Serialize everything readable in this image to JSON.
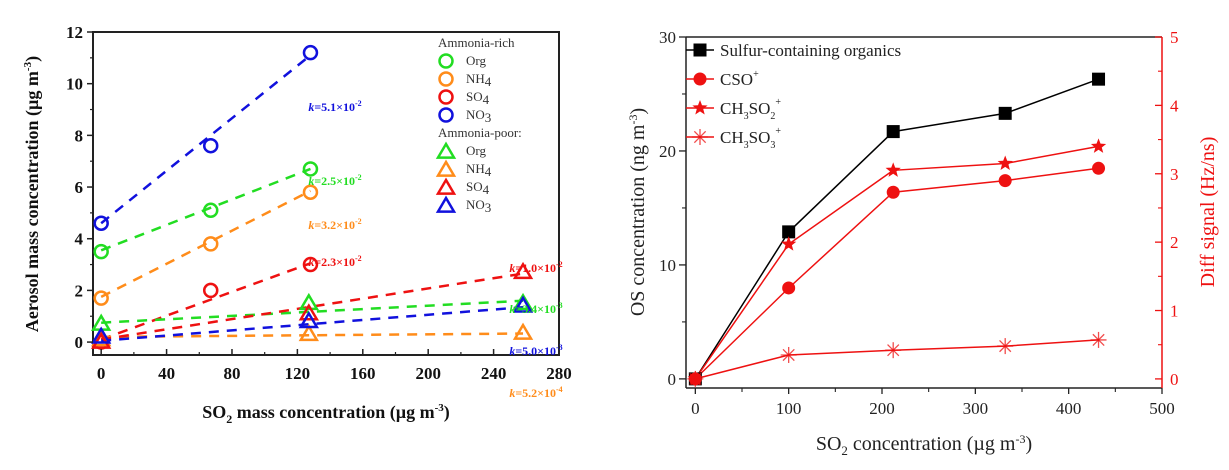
{
  "chart_data": [
    {
      "type": "scatter",
      "panel": "left",
      "title": "",
      "xlabel": "SO2 mass concentration (µg m-3)",
      "xlabel_parts": {
        "main": "SO",
        "sub": "2",
        "rest": " mass  concentration (µg m",
        "sup": "-3",
        "end": ")"
      },
      "ylabel": "Aerosol mass concentration (µg m-3)",
      "ylabel_parts": {
        "main": "Aerosol mass  concentration (µg m",
        "sup": "-3",
        "end": ")"
      },
      "xlim": [
        -5,
        280
      ],
      "ylim": [
        -0.5,
        12
      ],
      "xticks": [
        0,
        40,
        80,
        120,
        160,
        200,
        240,
        280
      ],
      "xtick_labels": [
        "0",
        "40",
        "80",
        "120",
        "160",
        "200",
        "240",
        "280"
      ],
      "yticks": [
        0,
        2,
        4,
        6,
        8,
        10,
        12
      ],
      "ytick_labels": [
        "0",
        "2",
        "4",
        "6",
        "8",
        "10",
        "12"
      ],
      "legend_position": "top-right",
      "legend_groups": [
        {
          "title": "Ammonia-rich",
          "marker": "circle"
        },
        {
          "title": "Ammonia-poor:",
          "marker": "triangle"
        }
      ],
      "series": [
        {
          "name": "Org",
          "group": "Ammonia-rich",
          "marker": "circle",
          "color": "#22dd22",
          "x": [
            0,
            67,
            128
          ],
          "y": [
            3.5,
            5.1,
            6.7
          ],
          "fit": [
            [
              0,
              3.55
            ],
            [
              128,
              6.7
            ]
          ],
          "k_label": "k=2.5×10",
          "k_exp": "-2"
        },
        {
          "name": "NH4",
          "group": "Ammonia-rich",
          "marker": "circle",
          "color": "#ff8c1a",
          "x": [
            0,
            67,
            128
          ],
          "y": [
            1.7,
            3.8,
            5.8
          ],
          "fit": [
            [
              0,
              1.75
            ],
            [
              128,
              5.85
            ]
          ],
          "k_label": "k=3.2×10",
          "k_exp": "-2"
        },
        {
          "name": "SO4",
          "group": "Ammonia-rich",
          "marker": "circle",
          "color": "#ee1111",
          "x": [
            0,
            67,
            128
          ],
          "y": [
            0.0,
            2.0,
            3.0
          ],
          "fit": [
            [
              0,
              0.1
            ],
            [
              128,
              3.05
            ]
          ],
          "k_label": "k=2.3×10",
          "k_exp": "-2"
        },
        {
          "name": "NO3",
          "group": "Ammonia-rich",
          "marker": "circle",
          "color": "#1111dd",
          "x": [
            0,
            67,
            128
          ],
          "y": [
            4.6,
            7.6,
            11.2
          ],
          "fit": [
            [
              0,
              4.6
            ],
            [
              128,
              11.1
            ]
          ],
          "k_label": "k=5.1×10",
          "k_exp": "-2"
        },
        {
          "name": "Org",
          "group": "Ammonia-poor",
          "marker": "triangle",
          "color": "#22dd22",
          "x": [
            0,
            127,
            258
          ],
          "y": [
            0.7,
            1.5,
            1.5
          ],
          "fit": [
            [
              0,
              0.75
            ],
            [
              258,
              1.6
            ]
          ],
          "k_label": "k=3.4×10",
          "k_exp": "-3"
        },
        {
          "name": "NH4",
          "group": "Ammonia-poor",
          "marker": "triangle",
          "color": "#ff8c1a",
          "x": [
            0,
            127,
            258
          ],
          "y": [
            0.1,
            0.3,
            0.35
          ],
          "fit": [
            [
              0,
              0.2
            ],
            [
              258,
              0.33
            ]
          ],
          "k_label": "k=5.2×10",
          "k_exp": "-4"
        },
        {
          "name": "SO4",
          "group": "Ammonia-poor",
          "marker": "triangle",
          "color": "#ee1111",
          "x": [
            0,
            127,
            258
          ],
          "y": [
            0.0,
            1.1,
            2.7
          ],
          "fit": [
            [
              0,
              0.1
            ],
            [
              258,
              2.65
            ]
          ],
          "k_label": "k=1.0×10",
          "k_exp": "-2"
        },
        {
          "name": "NO3",
          "group": "Ammonia-poor",
          "marker": "triangle",
          "color": "#1111dd",
          "x": [
            0,
            127,
            258
          ],
          "y": [
            0.2,
            0.8,
            1.4
          ],
          "fit": [
            [
              0,
              0.05
            ],
            [
              258,
              1.35
            ]
          ],
          "k_label": "k=5.0×10",
          "k_exp": "-3"
        }
      ]
    },
    {
      "type": "line",
      "panel": "right",
      "title": "",
      "xlabel": "SO2 concentration (µg m-3)",
      "xlabel_parts": {
        "main": "SO",
        "sub": "2",
        "rest": " concentration (µg m",
        "sup": "-3",
        "end": ")"
      },
      "ylabel": "OS concentration (ng m-3)",
      "ylabel_parts": {
        "main": "OS  concentration (ng m",
        "sup": "-3",
        "end": ")"
      },
      "y2label": "Diff signal (Hz/ns)",
      "xlim": [
        -10,
        500
      ],
      "ylim": [
        -0.8,
        30
      ],
      "y2lim": [
        -0.133,
        5
      ],
      "xticks": [
        0,
        100,
        200,
        300,
        400,
        500
      ],
      "xtick_labels": [
        "0",
        "100",
        "200",
        "300",
        "400",
        "500"
      ],
      "yticks": [
        0,
        10,
        20,
        30
      ],
      "ytick_labels": [
        "0",
        "10",
        "20",
        "30"
      ],
      "y2ticks": [
        0,
        1,
        2,
        3,
        4,
        5
      ],
      "y2tick_labels": [
        "0",
        "1",
        "2",
        "3",
        "4",
        "5"
      ],
      "y2_color": "#ee1111",
      "legend_position": "top-left",
      "x": [
        0,
        100,
        212,
        332,
        432
      ],
      "series": [
        {
          "name": "Sulfur-containing organics",
          "legend_label": {
            "main": "Sulfur-containing organics",
            "sub": "",
            "mid": "",
            "sub2": "",
            "sup": ""
          },
          "axis": "left",
          "marker": "square",
          "color": "#000000",
          "values": [
            0,
            12.9,
            21.7,
            23.3,
            26.3
          ]
        },
        {
          "name": "CSO+",
          "legend_label": {
            "main": "CSO",
            "sub": "",
            "mid": "",
            "sub2": "",
            "sup": "+"
          },
          "axis": "right",
          "marker": "circle",
          "color": "#ee1111",
          "values": [
            0,
            1.33,
            2.73,
            2.9,
            3.08
          ]
        },
        {
          "name": "CH3SO2+",
          "legend_label": {
            "main": "CH",
            "sub": "3",
            "mid": "SO",
            "sub2": "2",
            "sup": "+"
          },
          "axis": "right",
          "marker": "star",
          "color": "#ee1111",
          "values": [
            0,
            1.97,
            3.05,
            3.15,
            3.4
          ]
        },
        {
          "name": "CH3SO3+",
          "legend_label": {
            "main": "CH",
            "sub": "3",
            "mid": "SO",
            "sub2": "3",
            "sup": "+"
          },
          "axis": "right",
          "marker": "asterisk",
          "color": "#ee1111",
          "values": [
            0,
            0.35,
            0.42,
            0.48,
            0.57
          ]
        }
      ]
    }
  ]
}
